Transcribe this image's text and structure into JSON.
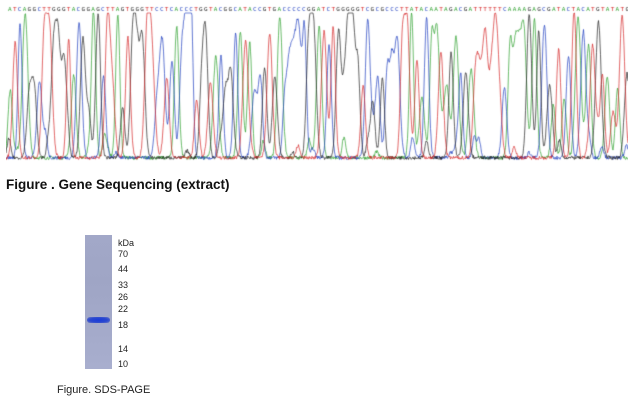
{
  "gene_sequencing": {
    "caption": "Figure . Gene Sequencing (extract)",
    "colors": {
      "A": "#2ca02c",
      "C": "#1f3fc0",
      "G": "#222222",
      "T": "#d62728",
      "background": "#ffffff"
    }
  },
  "sds_page": {
    "caption": "Figure. SDS-PAGE",
    "unit_label": "kDa",
    "markers": [
      "70",
      "44",
      "33",
      "26",
      "22",
      "18",
      "14",
      "10"
    ],
    "band": {
      "approx_kda": 20,
      "color": "#1f3ad6"
    }
  }
}
